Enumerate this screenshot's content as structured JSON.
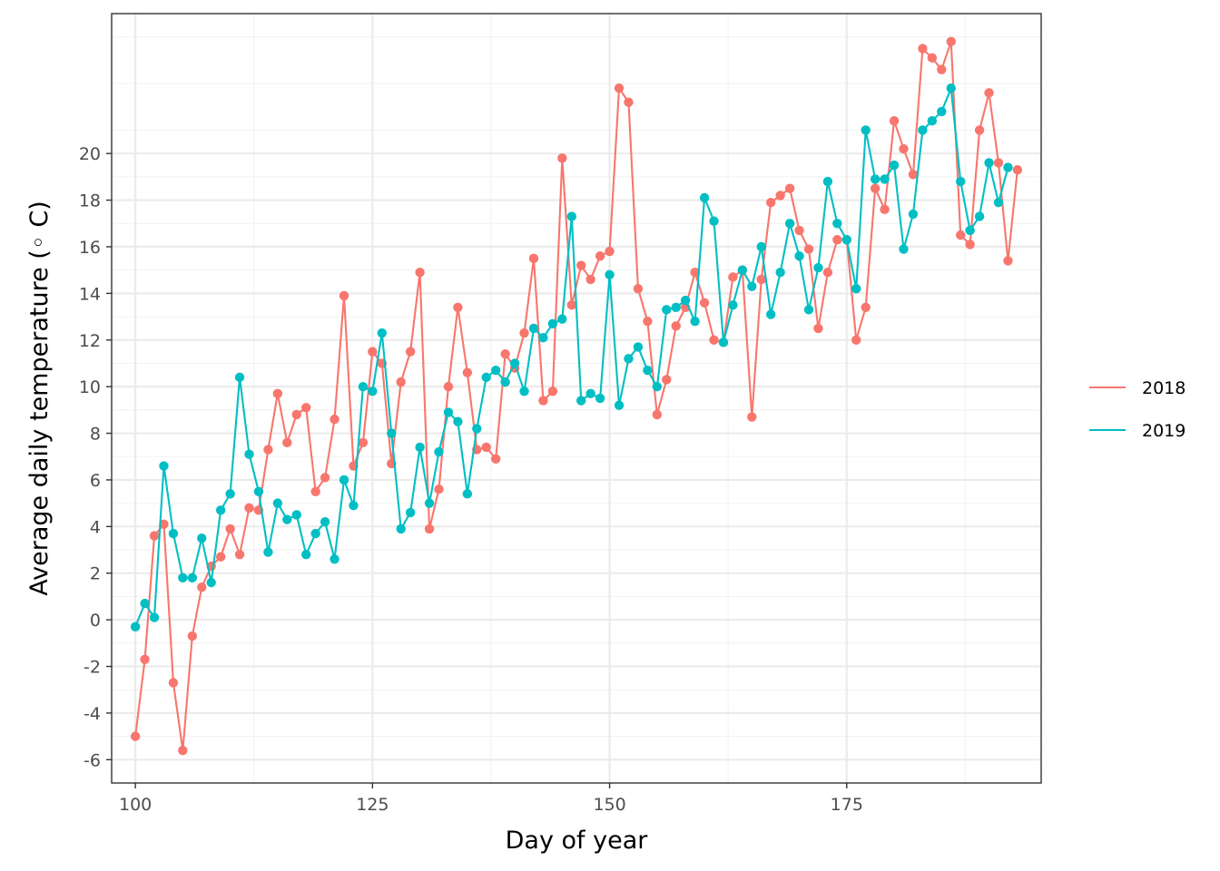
{
  "chart_data": {
    "type": "line",
    "xlabel": "Day of year",
    "ylabel": "Average daily temperature  (◦ C)",
    "xlim": [
      97.5,
      195.5
    ],
    "ylim": [
      -7,
      26
    ],
    "x_ticks": [
      100,
      125,
      150,
      175
    ],
    "y_ticks": [
      -6,
      -4,
      -2,
      0,
      2,
      4,
      6,
      8,
      10,
      12,
      14,
      16,
      18,
      20
    ],
    "grid": true,
    "legend_position": "right",
    "series": [
      {
        "name": "2018",
        "color": "#F8766D",
        "x": [
          100,
          101,
          102,
          103,
          104,
          105,
          106,
          107,
          108,
          109,
          110,
          111,
          112,
          113,
          114,
          115,
          116,
          117,
          118,
          119,
          120,
          121,
          122,
          123,
          124,
          125,
          126,
          127,
          128,
          129,
          130,
          131,
          132,
          133,
          134,
          135,
          136,
          137,
          138,
          139,
          140,
          141,
          142,
          143,
          144,
          145,
          146,
          147,
          148,
          149,
          150,
          151,
          152,
          153,
          154,
          155,
          156,
          157,
          158,
          159,
          160,
          161,
          162,
          163,
          164,
          165,
          166,
          167,
          168,
          169,
          170,
          171,
          172,
          173,
          174,
          175,
          176,
          177,
          178,
          179,
          180,
          181,
          182,
          183,
          184,
          185,
          186,
          187,
          188,
          189,
          190,
          191,
          192,
          193
        ],
        "values": [
          -5.0,
          -1.7,
          3.6,
          4.1,
          -2.7,
          -5.6,
          -0.7,
          1.4,
          2.3,
          2.7,
          3.9,
          2.8,
          4.8,
          4.7,
          7.3,
          9.7,
          7.6,
          8.8,
          9.1,
          5.5,
          6.1,
          8.6,
          13.9,
          6.6,
          7.6,
          11.5,
          11.0,
          6.7,
          10.2,
          11.5,
          14.9,
          3.9,
          5.6,
          10.0,
          13.4,
          10.6,
          7.3,
          7.4,
          6.9,
          11.4,
          10.8,
          12.3,
          15.5,
          9.4,
          9.8,
          19.8,
          13.5,
          15.2,
          14.6,
          15.6,
          15.8,
          22.8,
          22.2,
          14.2,
          12.8,
          8.8,
          10.3,
          12.6,
          13.4,
          14.9,
          13.6,
          12.0,
          11.9,
          14.7,
          15.0,
          8.7,
          14.6,
          17.9,
          18.2,
          18.5,
          16.7,
          15.9,
          12.5,
          14.9,
          16.3,
          16.3,
          12.0,
          13.4,
          18.5,
          17.6,
          21.4,
          20.2,
          19.1,
          24.5,
          24.1,
          23.6,
          24.8,
          16.5,
          16.1,
          21.0,
          22.6,
          19.6,
          15.4,
          19.3
        ]
      },
      {
        "name": "2019",
        "color": "#00BFC4",
        "x": [
          100,
          101,
          102,
          103,
          104,
          105,
          106,
          107,
          108,
          109,
          110,
          111,
          112,
          113,
          114,
          115,
          116,
          117,
          118,
          119,
          120,
          121,
          122,
          123,
          124,
          125,
          126,
          127,
          128,
          129,
          130,
          131,
          132,
          133,
          134,
          135,
          136,
          137,
          138,
          139,
          140,
          141,
          142,
          143,
          144,
          145,
          146,
          147,
          148,
          149,
          150,
          151,
          152,
          153,
          154,
          155,
          156,
          157,
          158,
          159,
          160,
          161,
          162,
          163,
          164,
          165,
          166,
          167,
          168,
          169,
          170,
          171,
          172,
          173,
          174,
          175,
          176,
          177,
          178,
          179,
          180,
          181,
          182,
          183,
          184,
          185,
          186,
          187,
          188,
          189,
          190,
          191,
          192
        ],
        "values": [
          -0.3,
          0.7,
          0.1,
          6.6,
          3.7,
          1.8,
          1.8,
          3.5,
          1.6,
          4.7,
          5.4,
          10.4,
          7.1,
          5.5,
          2.9,
          5.0,
          4.3,
          4.5,
          2.8,
          3.7,
          4.2,
          2.6,
          6.0,
          4.9,
          10.0,
          9.8,
          12.3,
          8.0,
          3.9,
          4.6,
          7.4,
          5.0,
          7.2,
          8.9,
          8.5,
          5.4,
          8.2,
          10.4,
          10.7,
          10.2,
          11.0,
          9.8,
          12.5,
          12.1,
          12.7,
          12.9,
          17.3,
          9.4,
          9.7,
          9.5,
          14.8,
          9.2,
          11.2,
          11.7,
          10.7,
          10.0,
          13.3,
          13.4,
          13.7,
          12.8,
          18.1,
          17.1,
          11.9,
          13.5,
          15.0,
          14.3,
          16.0,
          13.1,
          14.9,
          17.0,
          15.6,
          13.3,
          15.1,
          18.8,
          17.0,
          16.3,
          14.2,
          21.0,
          18.9,
          18.9,
          19.5,
          15.9,
          17.4,
          21.0,
          21.4,
          21.8,
          22.8,
          18.8,
          16.7,
          17.3,
          19.6,
          17.9,
          19.4
        ]
      }
    ]
  }
}
